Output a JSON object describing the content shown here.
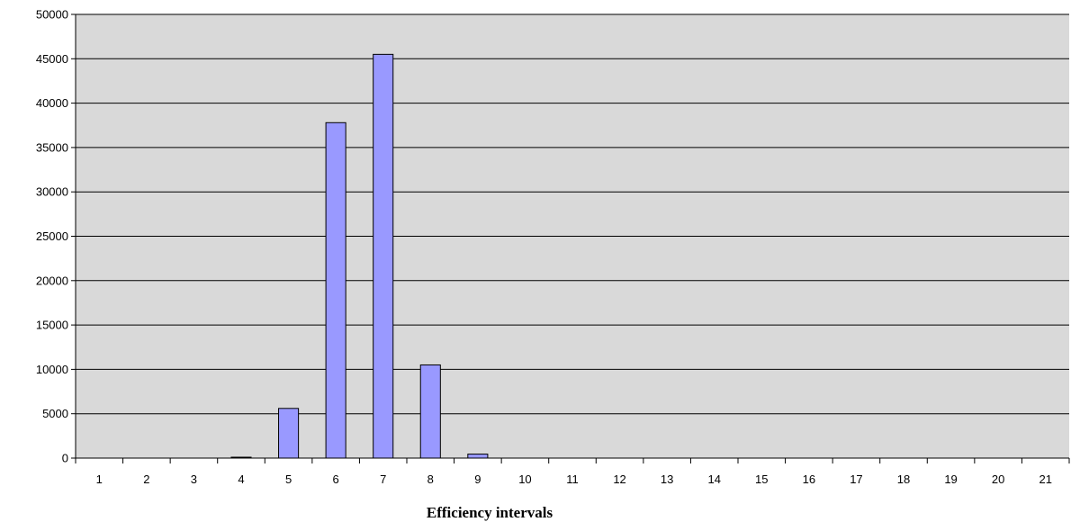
{
  "chart_data": {
    "type": "bar",
    "title": "",
    "xlabel": "Efficiency intervals",
    "ylabel": "",
    "categories": [
      "1",
      "2",
      "3",
      "4",
      "5",
      "6",
      "7",
      "8",
      "9",
      "10",
      "11",
      "12",
      "13",
      "14",
      "15",
      "16",
      "17",
      "18",
      "19",
      "20",
      "21"
    ],
    "values": [
      0,
      0,
      0,
      80,
      5600,
      37800,
      45500,
      10500,
      450,
      0,
      0,
      0,
      0,
      0,
      0,
      0,
      0,
      0,
      0,
      0,
      0
    ],
    "ylim": [
      0,
      50000
    ],
    "yticks": [
      "0",
      "5000",
      "10000",
      "15000",
      "20000",
      "25000",
      "30000",
      "35000",
      "40000",
      "45000",
      "50000"
    ],
    "grid": true,
    "legend": "none",
    "colors": {
      "plot_background": "#d9d9d9",
      "bar_fill": "#9999ff",
      "bar_stroke": "#000000",
      "grid": "#000000"
    }
  }
}
